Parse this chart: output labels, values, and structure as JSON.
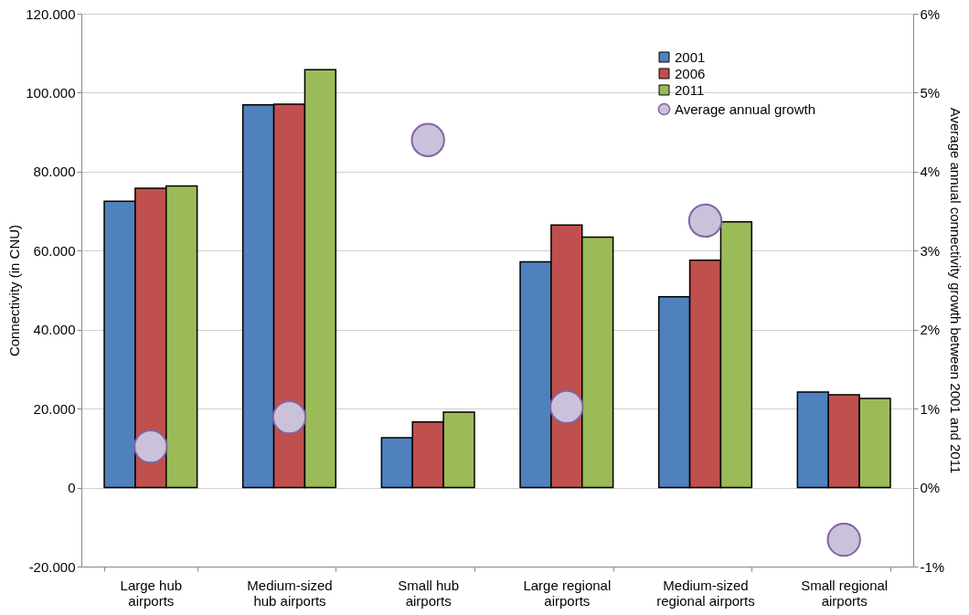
{
  "chart_data": {
    "type": "bar",
    "ylabel": "Connectivity (in CNU)",
    "y2label": "Average annual connectivity growth between 2001 and 2011",
    "categories": [
      "Large hub airports",
      "Medium-sized hub airports",
      "Small hub airports",
      "Large regional airports",
      "Medium-sized regional airports",
      "Small regional airports"
    ],
    "series": [
      {
        "name": "2001",
        "color": "#4f81bd",
        "values": [
          72500,
          96900,
          12600,
          57200,
          48300,
          24200
        ]
      },
      {
        "name": "2006",
        "color": "#c0504d",
        "values": [
          75800,
          97100,
          16600,
          66500,
          57600,
          23500
        ]
      },
      {
        "name": "2011",
        "color": "#9bbb59",
        "values": [
          76400,
          105800,
          19100,
          63400,
          67300,
          22600
        ]
      },
      {
        "name": "Average annual growth",
        "type": "scatter",
        "axis": "y2",
        "marker": "circle",
        "color": "#ccc1da",
        "values": [
          0.52,
          0.89,
          4.4,
          1.02,
          3.38,
          -0.66
        ]
      }
    ],
    "ylim": [
      -20000,
      120000
    ],
    "yticks": [
      {
        "value": -20000,
        "label": "-20.000"
      },
      {
        "value": 0,
        "label": "0"
      },
      {
        "value": 20000,
        "label": "20.000"
      },
      {
        "value": 40000,
        "label": "40.000"
      },
      {
        "value": 60000,
        "label": "60.000"
      },
      {
        "value": 80000,
        "label": "80.000"
      },
      {
        "value": 100000,
        "label": "100.000"
      },
      {
        "value": 120000,
        "label": "120.000"
      }
    ],
    "y2lim": [
      -1,
      6
    ],
    "y2ticks": [
      {
        "value": -1,
        "label": "-1%"
      },
      {
        "value": 0,
        "label": "0%"
      },
      {
        "value": 1,
        "label": "1%"
      },
      {
        "value": 2,
        "label": "2%"
      },
      {
        "value": 3,
        "label": "3%"
      },
      {
        "value": 4,
        "label": "4%"
      },
      {
        "value": 5,
        "label": "5%"
      },
      {
        "value": 6,
        "label": "6%"
      }
    ],
    "grid": "y",
    "legend": "top right"
  }
}
